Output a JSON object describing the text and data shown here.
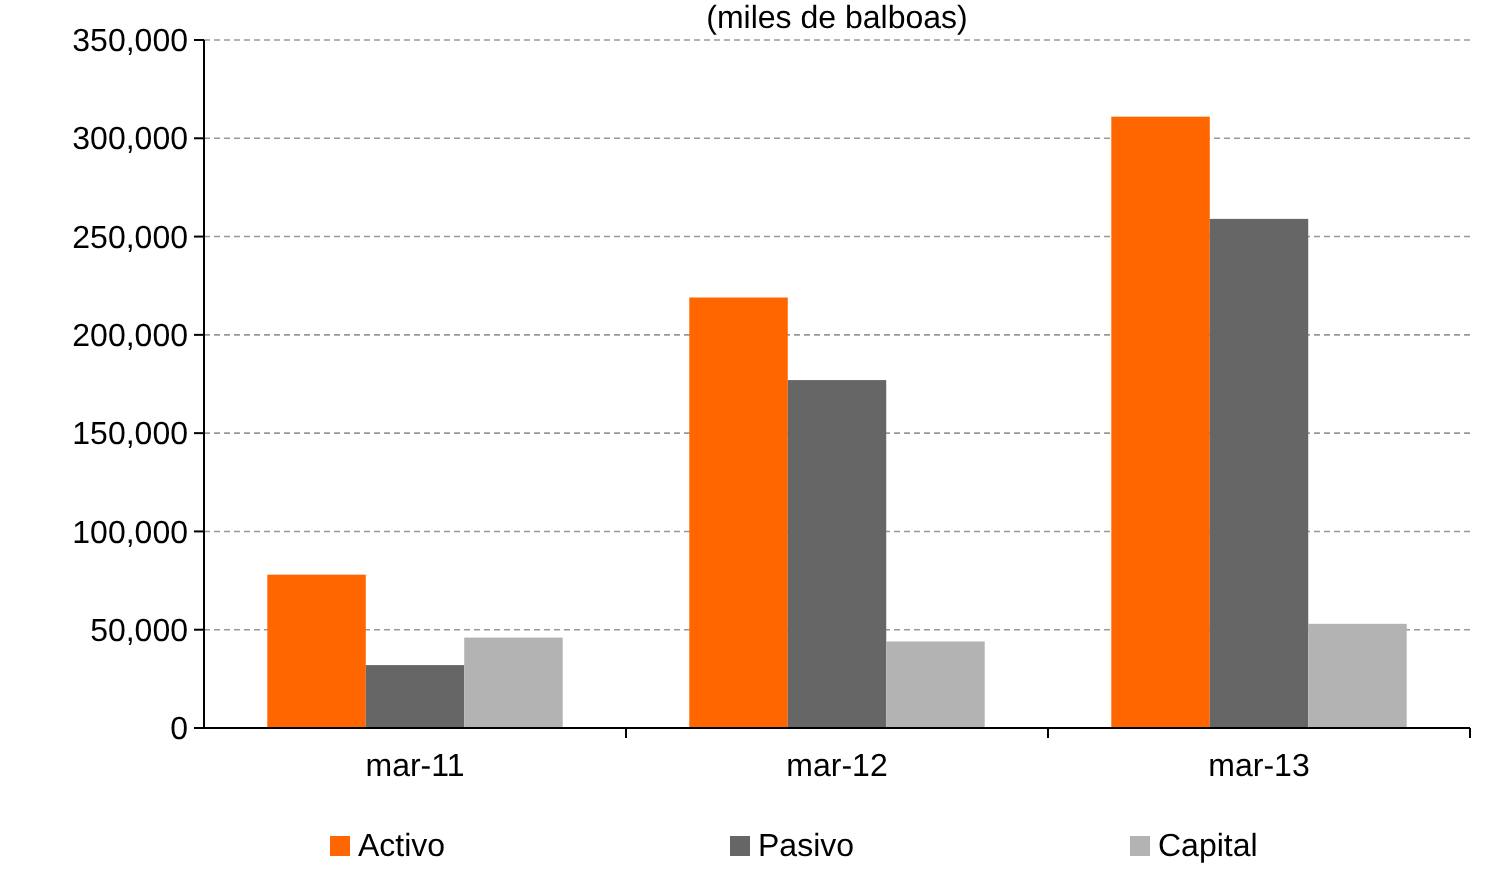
{
  "chart_data": {
    "type": "bar",
    "subtitle": "(miles de balboas)",
    "categories": [
      "mar-11",
      "mar-12",
      "mar-13"
    ],
    "series": [
      {
        "name": "Activo",
        "color": "#ff6600",
        "values": [
          78000,
          219000,
          311000
        ]
      },
      {
        "name": "Pasivo",
        "color": "#666666",
        "values": [
          32000,
          177000,
          259000
        ]
      },
      {
        "name": "Capital",
        "color": "#b3b3b3",
        "values": [
          46000,
          44000,
          53000
        ]
      }
    ],
    "ylim": [
      0,
      350000
    ],
    "yticks": [
      {
        "value": 0,
        "label": "0"
      },
      {
        "value": 50000,
        "label": "50,000"
      },
      {
        "value": 100000,
        "label": "100,000"
      },
      {
        "value": 150000,
        "label": "150,000"
      },
      {
        "value": 200000,
        "label": "200,000"
      },
      {
        "value": 250000,
        "label": "250,000"
      },
      {
        "value": 300000,
        "label": "300,000"
      },
      {
        "value": 350000,
        "label": "350,000"
      }
    ],
    "grid": "y",
    "legend": "bottom"
  }
}
